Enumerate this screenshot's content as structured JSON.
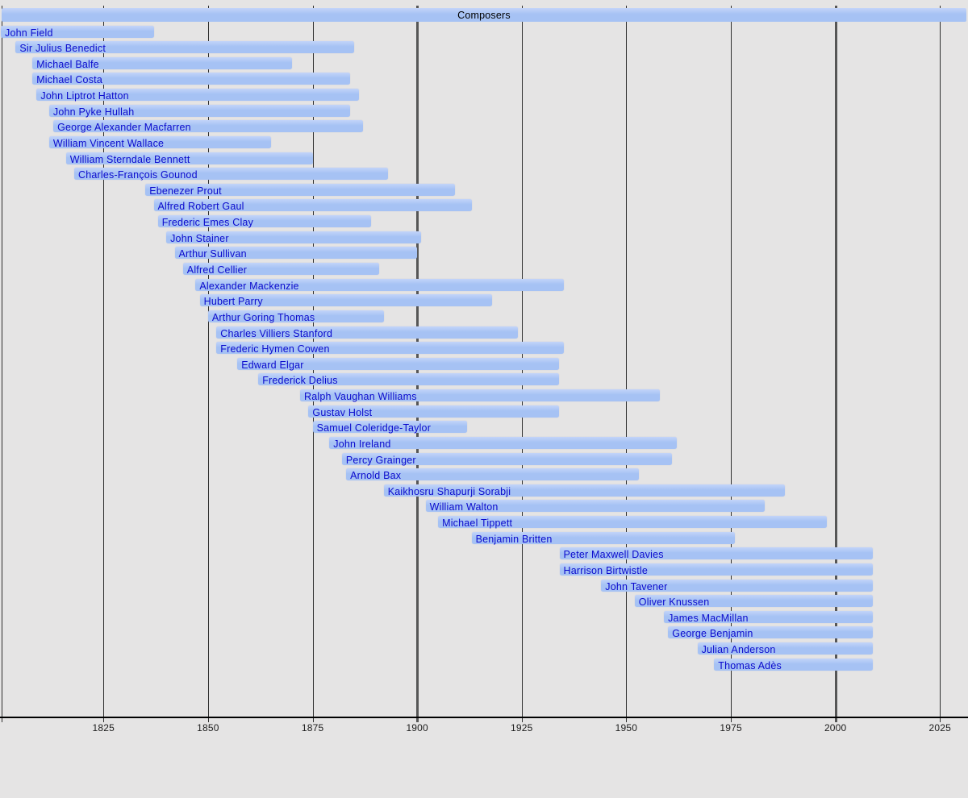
{
  "chart_data": {
    "type": "bar",
    "variant": "timeline-lifespans",
    "title": "Composers",
    "x_axis": {
      "range": [
        1800,
        2031
      ],
      "ticks": [
        1825,
        1850,
        1875,
        1900,
        1925,
        1950,
        1975,
        2000,
        2025
      ],
      "gridline_years": [
        1800,
        1825,
        1850,
        1875,
        1900,
        1925,
        1950,
        1975,
        2000,
        2025
      ],
      "major_gridline_years": [
        1900,
        2000
      ],
      "grid": true
    },
    "present_cutoff_year": 2009,
    "composers": [
      {
        "name": "John Field",
        "start": 1800,
        "end": 1837,
        "start_clipped": true
      },
      {
        "name": "Sir Julius Benedict",
        "start": 1804,
        "end": 1885
      },
      {
        "name": "Michael Balfe",
        "start": 1808,
        "end": 1870
      },
      {
        "name": "Michael Costa",
        "start": 1808,
        "end": 1884
      },
      {
        "name": "John Liptrot Hatton",
        "start": 1809,
        "end": 1886
      },
      {
        "name": "John Pyke Hullah",
        "start": 1812,
        "end": 1884
      },
      {
        "name": "George Alexander Macfarren",
        "start": 1813,
        "end": 1887
      },
      {
        "name": "William Vincent Wallace",
        "start": 1812,
        "end": 1865
      },
      {
        "name": "William Sterndale Bennett",
        "start": 1816,
        "end": 1875
      },
      {
        "name": "Charles-François Gounod",
        "start": 1818,
        "end": 1893
      },
      {
        "name": "Ebenezer Prout",
        "start": 1835,
        "end": 1909
      },
      {
        "name": "Alfred Robert Gaul",
        "start": 1837,
        "end": 1913
      },
      {
        "name": "Frederic Emes Clay",
        "start": 1838,
        "end": 1889
      },
      {
        "name": "John Stainer",
        "start": 1840,
        "end": 1901
      },
      {
        "name": "Arthur Sullivan",
        "start": 1842,
        "end": 1900
      },
      {
        "name": "Alfred Cellier",
        "start": 1844,
        "end": 1891
      },
      {
        "name": "Alexander Mackenzie",
        "start": 1847,
        "end": 1935
      },
      {
        "name": "Hubert Parry",
        "start": 1848,
        "end": 1918
      },
      {
        "name": "Arthur Goring Thomas",
        "start": 1850,
        "end": 1892
      },
      {
        "name": "Charles Villiers Stanford",
        "start": 1852,
        "end": 1924
      },
      {
        "name": "Frederic Hymen Cowen",
        "start": 1852,
        "end": 1935
      },
      {
        "name": "Edward Elgar",
        "start": 1857,
        "end": 1934
      },
      {
        "name": "Frederick Delius",
        "start": 1862,
        "end": 1934
      },
      {
        "name": "Ralph Vaughan Williams",
        "start": 1872,
        "end": 1958
      },
      {
        "name": "Gustav Holst",
        "start": 1874,
        "end": 1934
      },
      {
        "name": "Samuel Coleridge-Taylor",
        "start": 1875,
        "end": 1912
      },
      {
        "name": "John Ireland",
        "start": 1879,
        "end": 1962
      },
      {
        "name": "Percy Grainger",
        "start": 1882,
        "end": 1961
      },
      {
        "name": "Arnold Bax",
        "start": 1883,
        "end": 1953
      },
      {
        "name": "Kaikhosru Shapurji Sorabji",
        "start": 1892,
        "end": 1988
      },
      {
        "name": "William Walton",
        "start": 1902,
        "end": 1983
      },
      {
        "name": "Michael Tippett",
        "start": 1905,
        "end": 1998
      },
      {
        "name": "Benjamin Britten",
        "start": 1913,
        "end": 1976
      },
      {
        "name": "Peter Maxwell Davies",
        "start": 1934,
        "end": 2009,
        "living": true
      },
      {
        "name": "Harrison Birtwistle",
        "start": 1934,
        "end": 2009,
        "living": true
      },
      {
        "name": "John Tavener",
        "start": 1944,
        "end": 2009,
        "living": true
      },
      {
        "name": "Oliver Knussen",
        "start": 1952,
        "end": 2009,
        "living": true
      },
      {
        "name": "James MacMillan",
        "start": 1959,
        "end": 2009,
        "living": true
      },
      {
        "name": "George Benjamin",
        "start": 1960,
        "end": 2009,
        "living": true
      },
      {
        "name": "Julian Anderson",
        "start": 1967,
        "end": 2009,
        "living": true
      },
      {
        "name": "Thomas Adès",
        "start": 1971,
        "end": 2009,
        "living": true
      }
    ]
  },
  "colors": {
    "background": "#e5e4e4",
    "bar_fill": "#a6c2f4",
    "bar_fill_top": "#c3d4f9",
    "label_text": "#0b0bcd",
    "title_text": "#000000",
    "grid_minor": "#2f2f2f",
    "grid_major": "#565656",
    "axis_line": "#000000",
    "tick_label": "#1c1c1c"
  }
}
